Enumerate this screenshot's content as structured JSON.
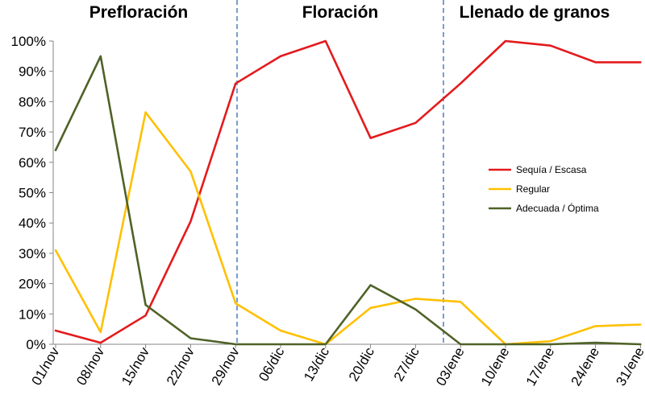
{
  "chart_data": {
    "type": "line",
    "title": "",
    "xlabel": "",
    "ylabel": "",
    "ylim": [
      0,
      100
    ],
    "y_ticks": [
      "0%",
      "10%",
      "20%",
      "30%",
      "40%",
      "50%",
      "60%",
      "70%",
      "80%",
      "90%",
      "100%"
    ],
    "categories": [
      "01/nov",
      "08/nov",
      "15/nov",
      "22/nov",
      "29/nov",
      "06/dic",
      "13/dic",
      "20/dic",
      "27/dic",
      "03/ene",
      "10/ene",
      "17/ene",
      "24/ene",
      "31/ene"
    ],
    "phases": [
      {
        "label": "Prefloración"
      },
      {
        "label": "Floración"
      },
      {
        "label": "Llenado de granos"
      }
    ],
    "series": [
      {
        "name": "Sequía / Escasa",
        "color": "#e41a1c",
        "values": [
          4.5,
          0.5,
          9.5,
          40.5,
          86,
          95,
          100,
          68,
          73,
          86,
          100,
          98.5,
          93,
          93
        ]
      },
      {
        "name": "Regular",
        "color": "#ffc000",
        "values": [
          31,
          4,
          76.5,
          57,
          13.5,
          4.5,
          0,
          12,
          15,
          14,
          0,
          1,
          6,
          6.5
        ]
      },
      {
        "name": "Adecuada / Óptima",
        "color": "#4f6228",
        "values": [
          64,
          95,
          13,
          2,
          0,
          0,
          0,
          19.5,
          11.5,
          0,
          0,
          0,
          0.5,
          0
        ]
      }
    ],
    "legend": "right-center",
    "grid": false
  }
}
